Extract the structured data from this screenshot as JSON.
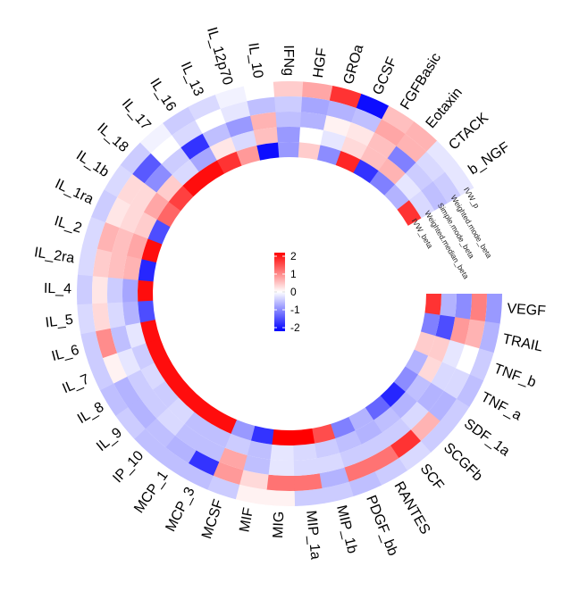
{
  "chart_data": {
    "type": "heatmap",
    "layout": "circular",
    "categories": [
      "VEGF",
      "TRAIL",
      "TNF_b",
      "TNF_a",
      "SDF_1a",
      "SCGFb",
      "SCF",
      "RANTES",
      "PDGF_bb",
      "MIP_1b",
      "MIP_1a",
      "MIG",
      "MIF",
      "MCSF",
      "MCP_3",
      "MCP_1",
      "IP_10",
      "IL_9",
      "IL_8",
      "IL_7",
      "IL_6",
      "IL_5",
      "IL_4",
      "IL_2ra",
      "IL_2",
      "IL_1ra",
      "IL_1b",
      "IL_18",
      "IL_17",
      "IL_16",
      "IL_13",
      "IL_12p70",
      "IL_10",
      "IFNg",
      "HGF",
      "GROa",
      "GCSF",
      "FGFBasic",
      "Eotaxin",
      "CTACK",
      "b_NGF"
    ],
    "series": [
      {
        "name": "IVW_p",
        "values": [
          -0.8,
          -0.6,
          -0.4,
          -0.5,
          -0.4,
          -0.4,
          -0.3,
          -0.4,
          -0.5,
          -0.4,
          -0.4,
          0.1,
          0.1,
          -0.4,
          -0.5,
          -0.5,
          -0.5,
          -0.4,
          -0.5,
          -0.4,
          -0.4,
          -0.3,
          -0.4,
          -0.3,
          -0.3,
          -0.4,
          -0.3,
          -0.4,
          -0.1,
          -0.4,
          -0.3,
          -0.1,
          0.0,
          0.4,
          0.7,
          1.6,
          -1.9,
          0.5,
          0.6,
          -0.2,
          -0.2
        ]
      },
      {
        "name": "Weighted_mode_beta",
        "values": [
          1.0,
          0.6,
          0.0,
          -0.3,
          -0.6,
          0.6,
          1.6,
          1.1,
          1.1,
          -0.6,
          1.1,
          1.1,
          0.3,
          0.8,
          -1.6,
          -0.6,
          -0.5,
          -0.6,
          -0.6,
          0.1,
          0.9,
          0.3,
          0.2,
          0.4,
          0.6,
          0.2,
          0.3,
          -1.3,
          0.0,
          -0.3,
          0.0,
          -0.2,
          -0.5,
          -0.4,
          -0.7,
          -0.6,
          -0.5,
          0.7,
          0.6,
          -0.3,
          -0.4
        ]
      },
      {
        "name": "Simple_mode_beta",
        "values": [
          -0.9,
          0.8,
          -0.2,
          -0.3,
          -0.6,
          -0.3,
          -0.4,
          -0.4,
          -0.4,
          -0.3,
          -0.3,
          -0.2,
          -0.5,
          0.7,
          -0.5,
          -0.5,
          -0.3,
          -0.4,
          -0.4,
          -0.2,
          -0.5,
          -0.3,
          -0.4,
          0.5,
          0.5,
          0.3,
          0.3,
          -0.9,
          -0.4,
          -1.6,
          -0.5,
          -0.8,
          0.6,
          -0.5,
          -0.6,
          0.1,
          0.2,
          0.5,
          -1.0,
          -0.4,
          -0.5
        ]
      },
      {
        "name": "Weighted_median_beta",
        "values": [
          -0.6,
          -1.4,
          0.4,
          0.3,
          -0.5,
          -0.6,
          -0.5,
          -0.6,
          -0.5,
          -0.4,
          -0.3,
          -0.2,
          -0.5,
          -0.4,
          -0.5,
          -0.5,
          -0.3,
          -0.4,
          -0.3,
          -0.4,
          -0.2,
          -0.6,
          -0.7,
          0.6,
          0.7,
          0.4,
          0.7,
          0.4,
          -0.3,
          -0.7,
          0.2,
          -0.3,
          0.5,
          -0.8,
          0.0,
          -0.2,
          0.3,
          0.5,
          0.6,
          -0.2,
          -0.3
        ]
      },
      {
        "name": "IVW_beta",
        "values": [
          1.6,
          -1.0,
          0.4,
          -0.6,
          -0.9,
          -1.7,
          -1.2,
          -0.6,
          -1.0,
          1.4,
          2.1,
          2.1,
          -1.6,
          -0.8,
          1.9,
          1.9,
          1.9,
          1.9,
          1.9,
          1.9,
          1.9,
          -1.4,
          1.9,
          -1.7,
          1.9,
          -1.4,
          1.2,
          1.5,
          1.9,
          1.9,
          1.6,
          0.8,
          -1.9,
          -0.8,
          0.4,
          -0.9,
          1.7,
          -1.6,
          -1.0,
          -0.6,
          1.6
        ]
      }
    ],
    "ring_labels": [
      "IVW_p",
      "Weighted.mode_beta",
      "Simple.mode_beta",
      "Weighted.median_beta",
      "IVW_beta"
    ],
    "legend": {
      "ticks": [
        "2",
        "1",
        "0",
        "-1",
        "-2"
      ],
      "range": [
        -2,
        2
      ],
      "colors": [
        "#0000ff",
        "#ffffff",
        "#ff0000"
      ],
      "placement": "center"
    }
  }
}
